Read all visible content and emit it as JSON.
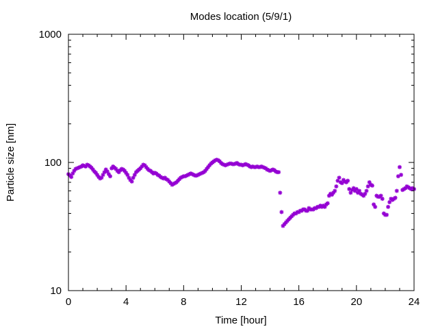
{
  "chart_data": {
    "type": "scatter",
    "title": "Modes location (5/9/1)",
    "xlabel": "Time [hour]",
    "ylabel": "Particle size [nm]",
    "x_ticks": [
      0,
      4,
      8,
      12,
      16,
      20,
      24
    ],
    "x_tick_labels": [
      "0",
      "4",
      "8",
      "12",
      "16",
      "20",
      "24"
    ],
    "y_ticks": [
      10,
      100,
      1000
    ],
    "y_tick_labels": [
      "10",
      "100",
      "1000"
    ],
    "xlim": [
      0,
      24
    ],
    "ylim": [
      10,
      1000
    ],
    "y_scale": "log",
    "grid": false,
    "legend": "none",
    "marker_color": "#9400d3",
    "series": [
      {
        "points": [
          [
            0.0,
            81
          ],
          [
            0.1,
            79
          ],
          [
            0.2,
            77
          ],
          [
            0.3,
            82
          ],
          [
            0.4,
            86
          ],
          [
            0.5,
            89
          ],
          [
            0.6,
            90
          ],
          [
            0.7,
            91
          ],
          [
            0.8,
            92
          ],
          [
            0.9,
            93
          ],
          [
            1.0,
            95
          ],
          [
            1.1,
            94
          ],
          [
            1.2,
            93
          ],
          [
            1.3,
            96
          ],
          [
            1.4,
            95
          ],
          [
            1.5,
            93
          ],
          [
            1.6,
            91
          ],
          [
            1.7,
            88
          ],
          [
            1.8,
            85
          ],
          [
            1.9,
            83
          ],
          [
            2.0,
            80
          ],
          [
            2.1,
            77
          ],
          [
            2.2,
            75
          ],
          [
            2.3,
            76
          ],
          [
            2.4,
            80
          ],
          [
            2.5,
            84
          ],
          [
            2.6,
            88
          ],
          [
            2.7,
            85
          ],
          [
            2.8,
            81
          ],
          [
            2.9,
            78
          ],
          [
            3.0,
            90
          ],
          [
            3.1,
            93
          ],
          [
            3.2,
            91
          ],
          [
            3.3,
            89
          ],
          [
            3.4,
            86
          ],
          [
            3.5,
            84
          ],
          [
            3.6,
            87
          ],
          [
            3.7,
            89
          ],
          [
            3.8,
            88
          ],
          [
            3.9,
            86
          ],
          [
            4.0,
            83
          ],
          [
            4.1,
            80
          ],
          [
            4.2,
            76
          ],
          [
            4.3,
            73
          ],
          [
            4.4,
            71
          ],
          [
            4.5,
            76
          ],
          [
            4.6,
            80
          ],
          [
            4.7,
            84
          ],
          [
            4.8,
            86
          ],
          [
            4.9,
            88
          ],
          [
            5.0,
            90
          ],
          [
            5.1,
            93
          ],
          [
            5.2,
            96
          ],
          [
            5.3,
            95
          ],
          [
            5.4,
            92
          ],
          [
            5.5,
            89
          ],
          [
            5.6,
            87
          ],
          [
            5.7,
            86
          ],
          [
            5.8,
            84
          ],
          [
            5.9,
            82
          ],
          [
            6.0,
            83
          ],
          [
            6.1,
            82
          ],
          [
            6.2,
            80
          ],
          [
            6.3,
            79
          ],
          [
            6.4,
            77
          ],
          [
            6.5,
            76
          ],
          [
            6.6,
            75
          ],
          [
            6.7,
            76
          ],
          [
            6.8,
            74
          ],
          [
            6.9,
            73
          ],
          [
            7.0,
            71
          ],
          [
            7.1,
            69
          ],
          [
            7.2,
            67
          ],
          [
            7.3,
            68
          ],
          [
            7.4,
            69
          ],
          [
            7.5,
            70
          ],
          [
            7.6,
            72
          ],
          [
            7.7,
            74
          ],
          [
            7.8,
            76
          ],
          [
            7.9,
            77
          ],
          [
            8.0,
            78
          ],
          [
            8.1,
            78
          ],
          [
            8.2,
            79
          ],
          [
            8.3,
            80
          ],
          [
            8.4,
            81
          ],
          [
            8.5,
            82
          ],
          [
            8.6,
            81
          ],
          [
            8.7,
            80
          ],
          [
            8.8,
            79
          ],
          [
            8.9,
            79
          ],
          [
            9.0,
            80
          ],
          [
            9.1,
            81
          ],
          [
            9.2,
            82
          ],
          [
            9.3,
            83
          ],
          [
            9.4,
            84
          ],
          [
            9.5,
            86
          ],
          [
            9.6,
            89
          ],
          [
            9.7,
            92
          ],
          [
            9.8,
            95
          ],
          [
            9.9,
            98
          ],
          [
            10.0,
            100
          ],
          [
            10.1,
            102
          ],
          [
            10.2,
            104
          ],
          [
            10.3,
            105
          ],
          [
            10.4,
            104
          ],
          [
            10.5,
            102
          ],
          [
            10.6,
            99
          ],
          [
            10.7,
            97
          ],
          [
            10.8,
            96
          ],
          [
            10.9,
            95
          ],
          [
            11.0,
            96
          ],
          [
            11.1,
            97
          ],
          [
            11.2,
            98
          ],
          [
            11.3,
            98
          ],
          [
            11.4,
            97
          ],
          [
            11.5,
            97
          ],
          [
            11.6,
            98
          ],
          [
            11.7,
            99
          ],
          [
            11.8,
            97
          ],
          [
            11.9,
            96
          ],
          [
            12.0,
            96
          ],
          [
            12.1,
            95
          ],
          [
            12.2,
            96
          ],
          [
            12.3,
            97
          ],
          [
            12.4,
            96
          ],
          [
            12.5,
            95
          ],
          [
            12.6,
            93
          ],
          [
            12.7,
            92
          ],
          [
            12.8,
            93
          ],
          [
            12.9,
            92
          ],
          [
            13.0,
            92
          ],
          [
            13.1,
            93
          ],
          [
            13.2,
            92
          ],
          [
            13.3,
            92
          ],
          [
            13.4,
            93
          ],
          [
            13.5,
            92
          ],
          [
            13.6,
            91
          ],
          [
            13.7,
            90
          ],
          [
            13.8,
            88
          ],
          [
            13.9,
            87
          ],
          [
            14.0,
            86
          ],
          [
            14.1,
            87
          ],
          [
            14.2,
            88
          ],
          [
            14.3,
            87
          ],
          [
            14.4,
            85
          ],
          [
            14.5,
            84
          ],
          [
            14.6,
            84
          ],
          [
            14.7,
            58
          ],
          [
            14.8,
            41
          ],
          [
            14.9,
            32
          ],
          [
            15.0,
            33
          ],
          [
            15.1,
            34
          ],
          [
            15.2,
            35
          ],
          [
            15.3,
            36
          ],
          [
            15.4,
            37
          ],
          [
            15.5,
            38
          ],
          [
            15.6,
            39
          ],
          [
            15.7,
            40
          ],
          [
            15.8,
            40
          ],
          [
            15.9,
            41
          ],
          [
            16.0,
            41
          ],
          [
            16.1,
            42
          ],
          [
            16.2,
            42
          ],
          [
            16.3,
            43
          ],
          [
            16.4,
            43
          ],
          [
            16.5,
            42
          ],
          [
            16.6,
            42
          ],
          [
            16.7,
            44
          ],
          [
            16.8,
            43
          ],
          [
            16.9,
            43
          ],
          [
            17.0,
            43
          ],
          [
            17.1,
            44
          ],
          [
            17.2,
            44
          ],
          [
            17.3,
            45
          ],
          [
            17.4,
            45
          ],
          [
            17.5,
            46
          ],
          [
            17.6,
            45
          ],
          [
            17.7,
            46
          ],
          [
            17.8,
            45
          ],
          [
            17.9,
            47
          ],
          [
            18.0,
            48
          ],
          [
            18.1,
            55
          ],
          [
            18.2,
            57
          ],
          [
            18.3,
            56
          ],
          [
            18.4,
            58
          ],
          [
            18.5,
            60
          ],
          [
            18.6,
            65
          ],
          [
            18.7,
            72
          ],
          [
            18.8,
            76
          ],
          [
            18.9,
            70
          ],
          [
            19.0,
            69
          ],
          [
            19.1,
            73
          ],
          [
            19.2,
            71
          ],
          [
            19.3,
            70
          ],
          [
            19.4,
            72
          ],
          [
            19.5,
            62
          ],
          [
            19.6,
            58
          ],
          [
            19.7,
            61
          ],
          [
            19.8,
            63
          ],
          [
            19.9,
            60
          ],
          [
            20.0,
            62
          ],
          [
            20.1,
            58
          ],
          [
            20.2,
            60
          ],
          [
            20.3,
            57
          ],
          [
            20.4,
            56
          ],
          [
            20.5,
            55
          ],
          [
            20.6,
            57
          ],
          [
            20.7,
            60
          ],
          [
            20.8,
            65
          ],
          [
            20.9,
            70
          ],
          [
            21.0,
            67
          ],
          [
            21.1,
            66
          ],
          [
            21.2,
            47
          ],
          [
            21.3,
            45
          ],
          [
            21.4,
            55
          ],
          [
            21.5,
            54
          ],
          [
            21.6,
            54
          ],
          [
            21.7,
            55
          ],
          [
            21.8,
            52
          ],
          [
            21.9,
            40
          ],
          [
            22.0,
            39
          ],
          [
            22.1,
            39
          ],
          [
            22.2,
            45
          ],
          [
            22.3,
            49
          ],
          [
            22.4,
            52
          ],
          [
            22.5,
            51
          ],
          [
            22.6,
            52
          ],
          [
            22.7,
            53
          ],
          [
            22.8,
            60
          ],
          [
            22.9,
            78
          ],
          [
            23.0,
            92
          ],
          [
            23.1,
            80
          ],
          [
            23.2,
            61
          ],
          [
            23.3,
            62
          ],
          [
            23.4,
            63
          ],
          [
            23.5,
            65
          ],
          [
            23.6,
            64
          ],
          [
            23.7,
            63
          ],
          [
            23.8,
            62
          ],
          [
            23.9,
            63
          ],
          [
            24.0,
            62
          ]
        ]
      }
    ]
  }
}
